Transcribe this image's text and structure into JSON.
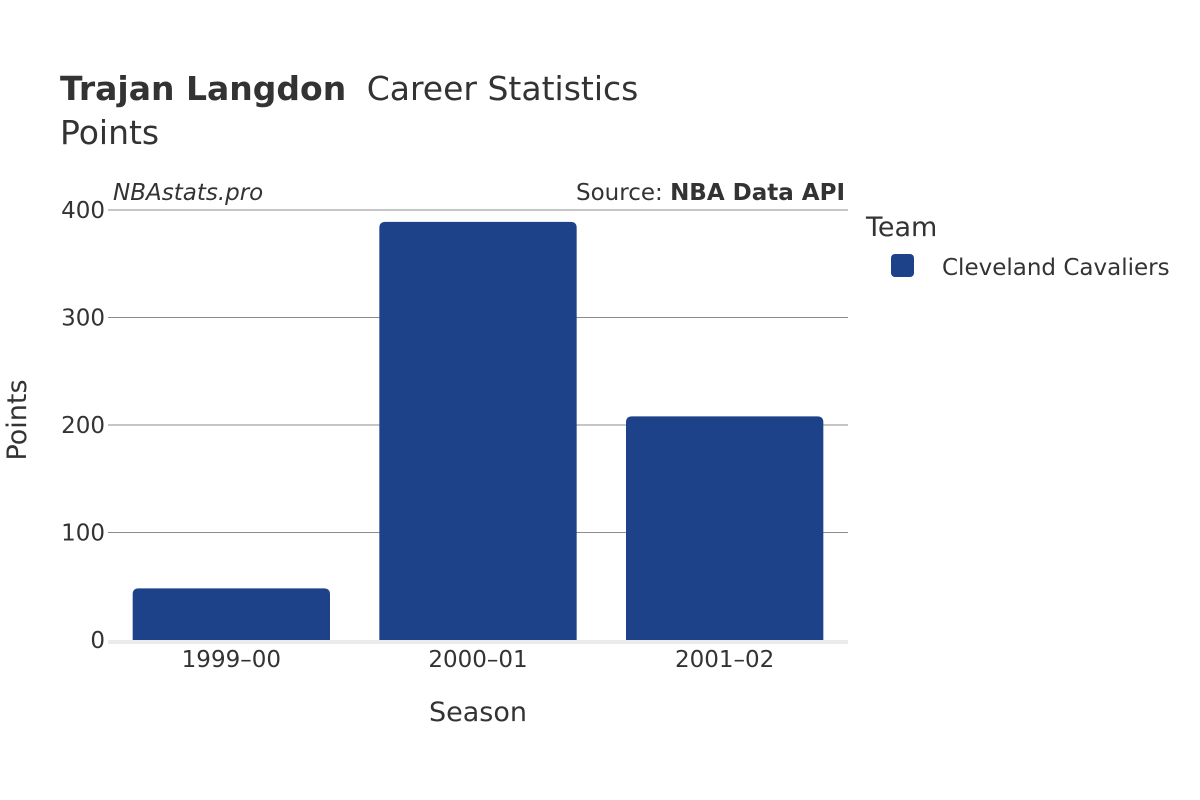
{
  "chart_data": {
    "type": "bar",
    "title": {
      "name": "Trajan Langdon",
      "rest": "Career Statistics"
    },
    "subtitle": "Points",
    "watermark": "NBAstats.pro",
    "source": {
      "prefix": "Source: ",
      "name": "NBA Data API"
    },
    "xlabel": "Season",
    "ylabel": "Points",
    "categories": [
      "1999–00",
      "2000–01",
      "2001–02"
    ],
    "series": [
      {
        "name": "Cleveland Cavaliers",
        "color": "#1d4289",
        "values": [
          48,
          389,
          208
        ]
      }
    ],
    "ylim": [
      0,
      400
    ],
    "yticks": [
      0,
      100,
      200,
      300,
      400
    ],
    "grid": true,
    "legend": {
      "title": "Team",
      "placement": "right"
    }
  }
}
